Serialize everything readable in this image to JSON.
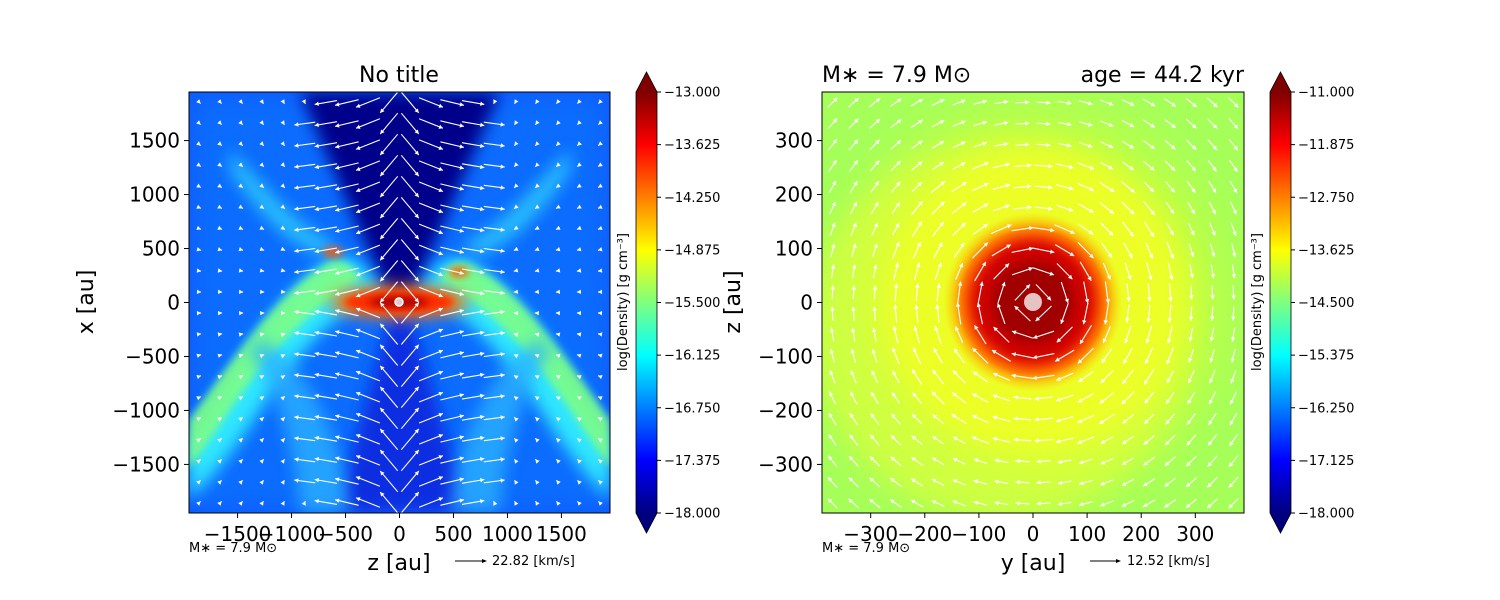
{
  "colormap_hex": [
    "#00007f",
    "#0000ff",
    "#007fff",
    "#00ffff",
    "#7fff7f",
    "#ffff00",
    "#ff7f00",
    "#ff0000",
    "#7f0000"
  ],
  "chart_data": [
    {
      "type": "heatmap",
      "title": "No title",
      "xlabel": "z [au]",
      "ylabel": "x [au]",
      "xlim": [
        -1950,
        1950
      ],
      "ylim": [
        -1950,
        1950
      ],
      "xticks": [
        -1500,
        -1000,
        -500,
        0,
        500,
        1000,
        1500
      ],
      "xtick_labels": [
        "−1500",
        "−1000",
        "−500",
        "0",
        "500",
        "1000",
        "1500"
      ],
      "yticks": [
        -1500,
        -1000,
        -500,
        0,
        500,
        1000,
        1500
      ],
      "ytick_labels": [
        "−1500",
        "−1000",
        "−500",
        "0",
        "500",
        "1000",
        "1500"
      ],
      "colorbar": {
        "label": "log(Density) [g cm$^{-3}$]",
        "label_display": "log(Density) [g cm⁻³]",
        "range": [
          -18.0,
          -13.0
        ],
        "ticks": [
          -13.0,
          -13.625,
          -14.25,
          -14.875,
          -15.5,
          -16.125,
          -16.75,
          -17.375,
          -18.0
        ],
        "tick_labels": [
          "−13.000",
          "−13.625",
          "−14.250",
          "−14.875",
          "−15.500",
          "−16.125",
          "−16.750",
          "−17.375",
          "−18.000"
        ]
      },
      "annotation_left": "M∗ = 7.9 M⊙",
      "velocity_key_label": "22.82 [km/s]",
      "velocity_key_value": 22.82
    },
    {
      "type": "heatmap",
      "title": "",
      "title_left": "M∗ = 7.9 M⊙",
      "title_right": "age = 44.2 kyr",
      "xlabel": "y [au]",
      "ylabel": "z [au]",
      "xlim": [
        -390,
        390
      ],
      "ylim": [
        -390,
        390
      ],
      "xticks": [
        -300,
        -200,
        -100,
        0,
        100,
        200,
        300
      ],
      "xtick_labels": [
        "−300",
        "−200",
        "−100",
        "0",
        "100",
        "200",
        "300"
      ],
      "yticks": [
        -300,
        -200,
        -100,
        0,
        100,
        200,
        300
      ],
      "ytick_labels": [
        "−300",
        "−200",
        "−100",
        "0",
        "100",
        "200",
        "300"
      ],
      "colorbar": {
        "label": "log(Density) [g cm$^{-3}$]",
        "label_display": "log(Density) [g cm⁻³]",
        "range": [
          -18.0,
          -11.0
        ],
        "ticks": [
          -11.0,
          -11.875,
          -12.75,
          -13.625,
          -14.5,
          -15.375,
          -16.25,
          -17.125,
          -18.0
        ],
        "tick_labels": [
          "−11.000",
          "−11.875",
          "−12.750",
          "−13.625",
          "−14.500",
          "−15.375",
          "−16.250",
          "−17.125",
          "−18.000"
        ]
      },
      "annotation_left": "M∗ = 7.9 M⊙",
      "velocity_key_label": "12.52 [km/s]",
      "velocity_key_value": 12.52
    }
  ]
}
